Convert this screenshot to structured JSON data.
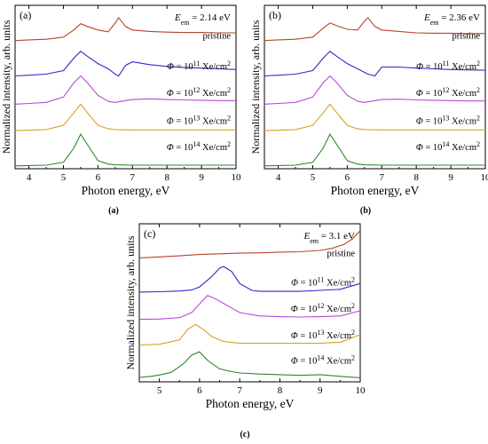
{
  "chart_data": [
    {
      "type": "line",
      "panel_label": "(a)",
      "caption": "(a)",
      "emission_prefix": "E",
      "emission_sub": "em",
      "emission_value": "= 2.14 eV",
      "xlabel": "Photon energy, eV",
      "ylabel": "Normalized intensity, arb. units",
      "xlim": [
        3.6,
        10
      ],
      "xticks": [
        4,
        5,
        6,
        7,
        8,
        9,
        10
      ],
      "grid": false,
      "series": [
        {
          "name": "pristine",
          "color": "#b5452a",
          "offset": 3.55,
          "x": [
            3.6,
            4.0,
            4.5,
            5.0,
            5.3,
            5.5,
            5.7,
            6.0,
            6.3,
            6.5,
            6.6,
            6.8,
            7.0,
            7.5,
            8.0,
            8.5,
            9.0,
            9.5,
            10.0
          ],
          "y": [
            0.0,
            0.02,
            0.04,
            0.1,
            0.3,
            0.48,
            0.4,
            0.3,
            0.25,
            0.5,
            0.65,
            0.4,
            0.3,
            0.26,
            0.24,
            0.23,
            0.23,
            0.22,
            0.22
          ]
        },
        {
          "name": "Φ = 10^11 Xe/cm^2",
          "color": "#2b2bc8",
          "offset": 2.55,
          "x": [
            3.6,
            4.0,
            4.5,
            5.0,
            5.3,
            5.5,
            5.7,
            6.0,
            6.3,
            6.5,
            6.6,
            6.8,
            7.0,
            7.5,
            8.0,
            8.5,
            9.0,
            9.5,
            10.0
          ],
          "y": [
            0.0,
            0.02,
            0.05,
            0.15,
            0.5,
            0.7,
            0.55,
            0.35,
            0.2,
            0.05,
            0.0,
            0.3,
            0.4,
            0.32,
            0.27,
            0.24,
            0.22,
            0.2,
            0.18
          ]
        },
        {
          "name": "Φ = 10^12 Xe/cm^2",
          "color": "#b84ad8",
          "offset": 1.75,
          "x": [
            3.6,
            4.0,
            4.5,
            5.0,
            5.3,
            5.5,
            5.7,
            6.0,
            6.3,
            6.5,
            6.8,
            7.0,
            7.5,
            8.0,
            8.5,
            9.0,
            9.5,
            10.0
          ],
          "y": [
            0.0,
            0.02,
            0.05,
            0.2,
            0.6,
            0.8,
            0.6,
            0.25,
            0.08,
            0.05,
            0.1,
            0.13,
            0.15,
            0.13,
            0.12,
            0.11,
            0.1,
            0.1
          ]
        },
        {
          "name": "Φ = 10^13 Xe/cm^2",
          "color": "#d9a21f",
          "offset": 1.0,
          "x": [
            3.6,
            4.0,
            4.5,
            5.0,
            5.3,
            5.5,
            5.7,
            6.0,
            6.3,
            6.5,
            7.0,
            7.5,
            8.0,
            8.5,
            9.0,
            9.5,
            10.0
          ],
          "y": [
            0.0,
            0.01,
            0.03,
            0.15,
            0.5,
            0.75,
            0.5,
            0.15,
            0.05,
            0.03,
            0.02,
            0.02,
            0.02,
            0.02,
            0.02,
            0.02,
            0.02
          ]
        },
        {
          "name": "Φ = 10^14 Xe/cm^2",
          "color": "#2a8a2a",
          "offset": 0.0,
          "x": [
            3.6,
            4.0,
            4.5,
            5.0,
            5.3,
            5.5,
            5.7,
            6.0,
            6.3,
            6.5,
            7.0,
            7.5,
            8.0,
            8.5,
            9.0,
            9.5,
            10.0
          ],
          "y": [
            0.0,
            0.01,
            0.02,
            0.1,
            0.5,
            0.9,
            0.6,
            0.15,
            0.05,
            0.03,
            0.02,
            0.02,
            0.02,
            0.02,
            0.02,
            0.02,
            0.02
          ]
        }
      ]
    },
    {
      "type": "line",
      "panel_label": "(b)",
      "caption": "(b)",
      "emission_prefix": "E",
      "emission_sub": "em",
      "emission_value": "= 2.36 eV",
      "xlabel": "Photon energy, eV",
      "ylabel": "Normalized intensity, arb. units",
      "xlim": [
        3.6,
        10
      ],
      "xticks": [
        4,
        5,
        6,
        7,
        8,
        9,
        10
      ],
      "grid": false,
      "series": [
        {
          "name": "pristine",
          "color": "#b5452a",
          "offset": 3.55,
          "x": [
            3.6,
            4.0,
            4.5,
            5.0,
            5.3,
            5.5,
            5.7,
            6.0,
            6.3,
            6.5,
            6.6,
            6.8,
            7.0,
            7.5,
            8.0,
            8.5,
            9.0,
            9.5,
            10.0
          ],
          "y": [
            0.0,
            0.02,
            0.04,
            0.1,
            0.35,
            0.5,
            0.42,
            0.32,
            0.3,
            0.55,
            0.65,
            0.4,
            0.3,
            0.26,
            0.22,
            0.21,
            0.21,
            0.2,
            0.2
          ]
        },
        {
          "name": "Φ = 10^11 Xe/cm^2",
          "color": "#2b2bc8",
          "offset": 2.55,
          "x": [
            3.6,
            4.0,
            4.5,
            5.0,
            5.3,
            5.5,
            5.7,
            6.0,
            6.3,
            6.6,
            6.8,
            7.0,
            7.5,
            8.0,
            8.5,
            9.0,
            9.5,
            10.0
          ],
          "y": [
            0.0,
            0.02,
            0.05,
            0.15,
            0.5,
            0.7,
            0.55,
            0.35,
            0.2,
            0.05,
            0.0,
            0.25,
            0.25,
            0.22,
            0.2,
            0.18,
            0.17,
            0.16
          ]
        },
        {
          "name": "Φ = 10^12 Xe/cm^2",
          "color": "#b84ad8",
          "offset": 1.75,
          "x": [
            3.6,
            4.0,
            4.5,
            5.0,
            5.3,
            5.5,
            5.7,
            6.0,
            6.3,
            6.5,
            6.8,
            7.0,
            7.5,
            8.0,
            8.5,
            9.0,
            9.5,
            10.0
          ],
          "y": [
            0.0,
            0.02,
            0.05,
            0.2,
            0.6,
            0.8,
            0.6,
            0.25,
            0.08,
            0.05,
            0.1,
            0.13,
            0.14,
            0.12,
            0.11,
            0.1,
            0.09,
            0.09
          ]
        },
        {
          "name": "Φ = 10^13 Xe/cm^2",
          "color": "#d9a21f",
          "offset": 1.0,
          "x": [
            3.6,
            4.0,
            4.5,
            5.0,
            5.3,
            5.5,
            5.7,
            6.0,
            6.3,
            6.5,
            7.0,
            7.5,
            8.0,
            8.5,
            9.0,
            9.5,
            10.0
          ],
          "y": [
            0.0,
            0.01,
            0.03,
            0.15,
            0.5,
            0.75,
            0.5,
            0.15,
            0.05,
            0.03,
            0.02,
            0.02,
            0.02,
            0.02,
            0.02,
            0.02,
            0.02
          ]
        },
        {
          "name": "Φ = 10^14 Xe/cm^2",
          "color": "#2a8a2a",
          "offset": 0.0,
          "x": [
            3.6,
            4.0,
            4.5,
            5.0,
            5.3,
            5.5,
            5.7,
            6.0,
            6.3,
            6.5,
            7.0,
            7.5,
            8.0,
            8.5,
            9.0,
            9.5,
            10.0
          ],
          "y": [
            0.0,
            0.01,
            0.02,
            0.1,
            0.5,
            0.9,
            0.6,
            0.15,
            0.05,
            0.03,
            0.02,
            0.02,
            0.02,
            0.02,
            0.02,
            0.02,
            0.02
          ]
        }
      ]
    },
    {
      "type": "line",
      "panel_label": "(c)",
      "caption": "(c)",
      "emission_prefix": "E",
      "emission_sub": "em",
      "emission_value": "= 3.1 eV",
      "xlabel": "Photon energy, eV",
      "ylabel": "Normalized intensity, arb. units",
      "xlim": [
        4.5,
        10
      ],
      "xticks": [
        5,
        6,
        7,
        8,
        9,
        10
      ],
      "grid": false,
      "series": [
        {
          "name": "pristine",
          "color": "#b5452a",
          "offset": 3.55,
          "x": [
            4.5,
            5.0,
            5.5,
            6.0,
            6.5,
            7.0,
            7.5,
            8.0,
            8.5,
            9.0,
            9.3,
            9.6,
            9.8,
            10.0
          ],
          "y": [
            0.0,
            0.03,
            0.06,
            0.1,
            0.12,
            0.14,
            0.15,
            0.17,
            0.18,
            0.22,
            0.28,
            0.4,
            0.55,
            0.8
          ]
        },
        {
          "name": "Φ = 10^11 Xe/cm^2",
          "color": "#2b2bc8",
          "offset": 2.55,
          "x": [
            4.5,
            5.0,
            5.5,
            5.8,
            6.0,
            6.3,
            6.5,
            6.6,
            6.8,
            7.0,
            7.3,
            7.5,
            8.0,
            8.5,
            9.0,
            9.5,
            10.0
          ],
          "y": [
            0.0,
            0.01,
            0.03,
            0.06,
            0.15,
            0.45,
            0.7,
            0.75,
            0.6,
            0.25,
            0.05,
            0.02,
            0.02,
            0.02,
            0.05,
            0.08,
            0.25
          ]
        },
        {
          "name": "Φ = 10^12 Xe/cm^2",
          "color": "#b84ad8",
          "offset": 1.75,
          "x": [
            4.5,
            5.0,
            5.5,
            5.8,
            6.0,
            6.2,
            6.4,
            6.7,
            7.0,
            7.5,
            8.0,
            8.5,
            9.0,
            9.5,
            10.0
          ],
          "y": [
            0.0,
            0.01,
            0.05,
            0.2,
            0.45,
            0.7,
            0.6,
            0.4,
            0.2,
            0.1,
            0.08,
            0.07,
            0.08,
            0.1,
            0.25
          ]
        },
        {
          "name": "Φ = 10^13 Xe/cm^2",
          "color": "#d9a21f",
          "offset": 1.0,
          "x": [
            4.5,
            5.0,
            5.5,
            5.7,
            5.9,
            6.1,
            6.3,
            6.6,
            7.0,
            7.5,
            8.0,
            8.5,
            9.0,
            9.5,
            10.0
          ],
          "y": [
            0.0,
            0.02,
            0.15,
            0.45,
            0.6,
            0.45,
            0.25,
            0.1,
            0.05,
            0.05,
            0.05,
            0.05,
            0.05,
            0.08,
            0.3
          ]
        },
        {
          "name": "Φ = 10^14 Xe/cm^2",
          "color": "#2a8a2a",
          "offset": 0.0,
          "x": [
            4.5,
            4.8,
            5.0,
            5.3,
            5.6,
            5.8,
            6.0,
            6.2,
            6.5,
            6.8,
            7.0,
            7.5,
            8.0,
            8.5,
            9.0,
            9.5,
            10.0
          ],
          "y": [
            0.05,
            0.08,
            0.12,
            0.2,
            0.45,
            0.7,
            0.8,
            0.55,
            0.3,
            0.22,
            0.18,
            0.15,
            0.13,
            0.11,
            0.13,
            0.08,
            0.04
          ]
        }
      ]
    }
  ]
}
